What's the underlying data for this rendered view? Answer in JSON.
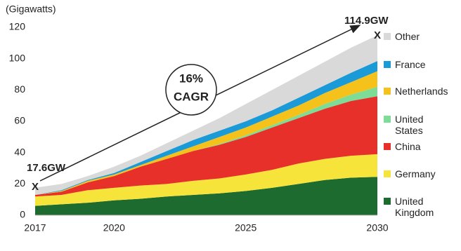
{
  "chart_data": {
    "type": "stacked_area",
    "y_unit": "(Gigawatts)",
    "annotations": [
      "17.6GW",
      "X",
      "114.9GW",
      "X",
      "16%",
      "CAGR"
    ],
    "x": [
      2017,
      2018,
      2019,
      2020,
      2021,
      2022,
      2023,
      2024,
      2025,
      2026,
      2027,
      2028,
      2029,
      2030
    ],
    "xlim": [
      2017,
      2030
    ],
    "xticks": [
      2017,
      2020,
      2025,
      2030
    ],
    "ylim": [
      0,
      120
    ],
    "yticks": [
      0,
      20,
      40,
      60,
      80,
      100,
      120
    ],
    "series": [
      {
        "name": "United Kingdom",
        "color": "#1e6b30",
        "values": [
          6,
          7,
          8,
          9.5,
          10.5,
          12,
          13,
          14,
          15.5,
          17.5,
          20,
          22.5,
          24,
          24.5
        ]
      },
      {
        "name": "Germany",
        "color": "#f7e43a",
        "values": [
          6,
          6,
          8,
          8,
          8.5,
          8,
          9,
          9.5,
          10.5,
          11.5,
          13,
          13.5,
          14,
          14.5
        ]
      },
      {
        "name": "China",
        "color": "#e8302a",
        "values": [
          1,
          2,
          5,
          7.5,
          12,
          16,
          19,
          21.5,
          24,
          27,
          29,
          32,
          35,
          37
        ]
      },
      {
        "name": "United States",
        "color": "#7ddc96",
        "values": [
          0,
          0,
          0,
          0,
          0,
          0,
          0,
          0.5,
          1,
          1.5,
          2,
          3,
          4,
          6
        ]
      },
      {
        "name": "Netherlands",
        "color": "#f5c21b",
        "values": [
          0,
          0.5,
          1,
          1,
          1,
          2,
          3,
          4.5,
          5,
          5.5,
          6,
          7,
          8,
          10
        ]
      },
      {
        "name": "France",
        "color": "#1a9ad6",
        "values": [
          0,
          0.5,
          0.5,
          1,
          2,
          3,
          4,
          4,
          4,
          4,
          5,
          5,
          6,
          6.5
        ]
      },
      {
        "name": "Other",
        "color": "#d9d9d9",
        "values": [
          4.6,
          4,
          2.5,
          4,
          4,
          5,
          6,
          8,
          11,
          13,
          14,
          15,
          16,
          16.4
        ]
      }
    ]
  }
}
